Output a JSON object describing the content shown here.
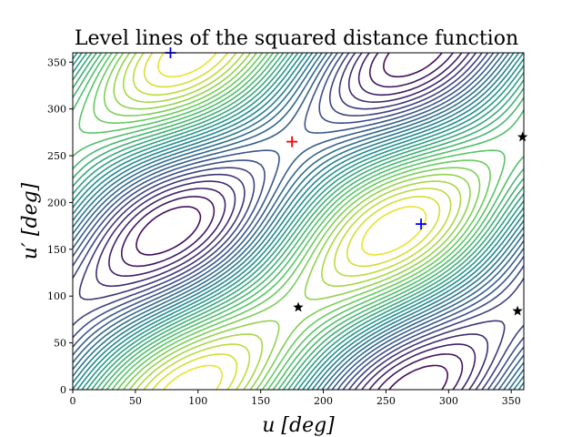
{
  "chart_data": {
    "type": "contour",
    "title": "Level lines of the squared distance function",
    "xlabel": "u [deg]",
    "ylabel": "u′ [deg]",
    "xlim": [
      0,
      360
    ],
    "ylim": [
      0,
      360
    ],
    "xticks": [
      "0",
      "50",
      "100",
      "150",
      "200",
      "250",
      "300",
      "350"
    ],
    "yticks": [
      "0",
      "50",
      "100",
      "150",
      "200",
      "250",
      "300",
      "350"
    ],
    "grid": false,
    "colormap": [
      "#440154",
      "#3b528b",
      "#21908d",
      "#5dc963",
      "#fde725"
    ],
    "red_cross": {
      "x": 175,
      "y": 265,
      "color": "#ff0000"
    },
    "blue_crosses": [
      {
        "x": 278,
        "y": 177
      },
      {
        "x": 78,
        "y": 360
      }
    ],
    "black_stars": [
      {
        "x": 180,
        "y": 88
      },
      {
        "x": 355,
        "y": 84
      },
      {
        "x": 359,
        "y": 270
      }
    ]
  }
}
